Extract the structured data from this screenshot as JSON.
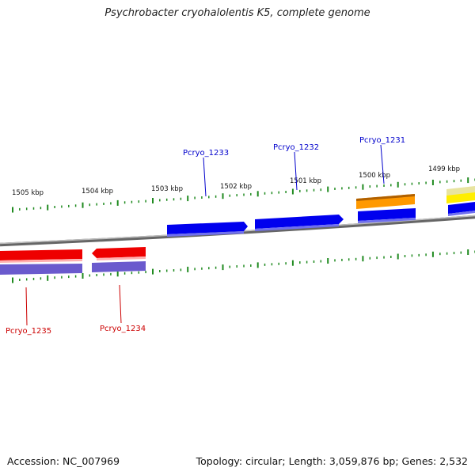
{
  "title": "Psychrobacter cryohalolentis K5, complete genome",
  "footer": {
    "accession": "Accession: NC_007969",
    "summary": "Topology: circular; Length: 3,059,876 bp; Genes: 2,532"
  },
  "colors": {
    "backbone": "#8a8a8a",
    "tick": "#1f8a1f",
    "forward_gene": "#0000ee",
    "forward_cds": "#7070ee",
    "reverse_gene": "#ee0000",
    "reverse_cds": "#6a5acd",
    "other_feature": "#ff9900",
    "misc_feature": "#ffee00",
    "forward_label": "#0000cc",
    "reverse_label": "#cc0000"
  },
  "ticks": [
    {
      "label": "1505 kbp"
    },
    {
      "label": "1504 kbp"
    },
    {
      "label": "1503 kbp"
    },
    {
      "label": "1502 kbp"
    },
    {
      "label": "1501 kbp"
    },
    {
      "label": "1500 kbp"
    },
    {
      "label": "1499 kbp"
    }
  ],
  "genes": [
    {
      "name": "Pcryo_1235",
      "strand": "reverse"
    },
    {
      "name": "Pcryo_1234",
      "strand": "reverse"
    },
    {
      "name": "Pcryo_1233",
      "strand": "forward"
    },
    {
      "name": "Pcryo_1232",
      "strand": "forward"
    },
    {
      "name": "Pcryo_1231",
      "strand": "forward"
    }
  ]
}
